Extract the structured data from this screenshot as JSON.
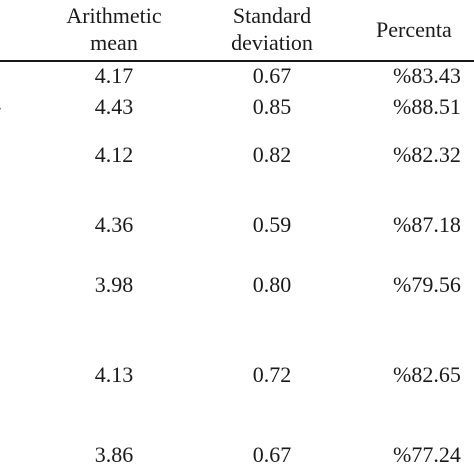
{
  "table": {
    "headers": {
      "mean": [
        "Arithmetic",
        "mean"
      ],
      "sd": [
        "Standard",
        "deviation"
      ],
      "percentage": "Percenta"
    },
    "row_stub_fragments": [
      "-",
      "t"
    ],
    "rows": [
      {
        "mean": "4.17",
        "sd": "0.67",
        "pct": "%83.43"
      },
      {
        "mean": "4.43",
        "sd": "0.85",
        "pct": "%88.51"
      },
      {
        "mean": "4.12",
        "sd": "0.82",
        "pct": "%82.32"
      },
      {
        "mean": "4.36",
        "sd": "0.59",
        "pct": "%87.18"
      },
      {
        "mean": "3.98",
        "sd": "0.80",
        "pct": "%79.56"
      },
      {
        "mean": "4.13",
        "sd": "0.72",
        "pct": "%82.65"
      },
      {
        "mean": "3.86",
        "sd": "0.67",
        "pct": "%77.24"
      }
    ]
  }
}
